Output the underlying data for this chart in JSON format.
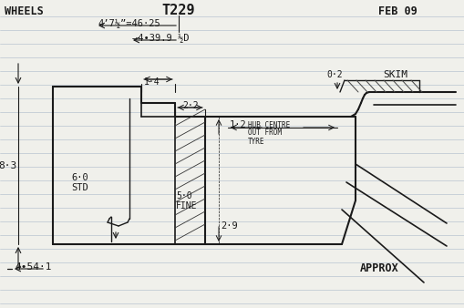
{
  "title": "T229",
  "label_wheels": "WHEELS",
  "label_feb": "FEB 09",
  "label_approx": "APPROX",
  "dim_46_25": "4’7½”=46·25",
  "dim_39_9": "→4•39.9 ½D",
  "dim_54_1": "4•54·1",
  "dim_8_3": "8·3",
  "dim_1_4": "1·4",
  "dim_2_2": "2·2",
  "dim_6_0": "6·0",
  "dim_std": "STD",
  "dim_5_0": "5·0",
  "dim_fine": "FINE",
  "dim_2_9": "2·9",
  "dim_0_2": "0·2",
  "dim_skim": "SKIM",
  "dim_1_2": "1·2",
  "dim_hub": "HUB CENTRE",
  "dim_outfrom": "OUT FROM",
  "dim_tyre": "TYRE",
  "bg_color": "#f0f0eb",
  "line_color": "#1a1a1a",
  "line_rules_color": "#b8c4d0"
}
